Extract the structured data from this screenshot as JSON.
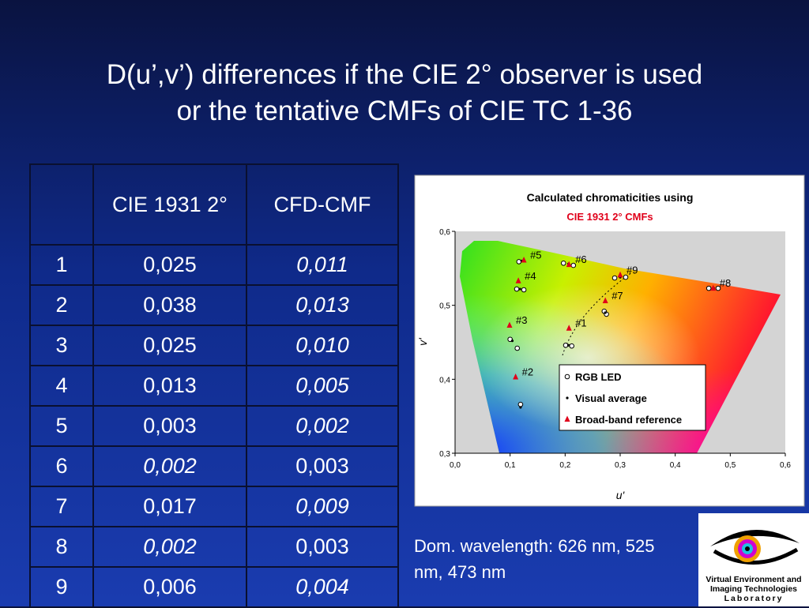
{
  "header": {
    "title_lines": [
      "D(u’,v’)  differences if the CIE 2° observer is used",
      "or the tentative CMFs of CIE TC 1-36"
    ]
  },
  "table": {
    "columns": [
      "CIE 1931 2°",
      "CFD-CMF"
    ],
    "rows": [
      [
        "1",
        "0,025",
        "0,011"
      ],
      [
        "2",
        "0,038",
        "0,013"
      ],
      [
        "3",
        "0,025",
        "0,010"
      ],
      [
        "4",
        "0,013",
        "0,005"
      ],
      [
        "5",
        "0,003",
        "0,002"
      ],
      [
        "6",
        "0,002",
        "0,003"
      ],
      [
        "7",
        "0,017",
        "0,009"
      ],
      [
        "8",
        "0,002",
        "0,003"
      ],
      [
        "9",
        "0,006",
        "0,004"
      ]
    ],
    "emphasized_column": [
      2,
      2,
      2,
      2,
      2,
      1,
      2,
      1,
      2
    ]
  },
  "chart_data": {
    "type": "scatter",
    "title": "Calculated chromaticities using",
    "subtitle": "CIE 1931 2° CMFs",
    "x_label": "u'",
    "y_label": "v'",
    "xlim": [
      0,
      0.6
    ],
    "ylim": [
      0.3,
      0.6
    ],
    "xticks": [
      {
        "value": 0,
        "label": "0,0"
      },
      {
        "value": 0.1,
        "label": "0,1"
      },
      {
        "value": 0.2,
        "label": "0,2"
      },
      {
        "value": 0.3,
        "label": "0,3"
      },
      {
        "value": 0.4,
        "label": "0,4"
      },
      {
        "value": 0.5,
        "label": "0,5"
      },
      {
        "value": 0.6,
        "label": "0,6"
      }
    ],
    "yticks": [
      {
        "value": 0.3,
        "label": "0,3"
      },
      {
        "value": 0.4,
        "label": "0,4"
      },
      {
        "value": 0.5,
        "label": "0,5"
      },
      {
        "value": 0.6,
        "label": "0,6"
      }
    ],
    "series": [
      {
        "name": "RGB LED",
        "marker": "circle",
        "color": "#000000",
        "x": [
          0.201,
          0.212,
          0.119,
          0.1,
          0.113,
          0.112,
          0.125,
          0.116,
          0.197,
          0.215,
          0.271,
          0.275,
          0.461,
          0.478,
          0.29,
          0.31
        ],
        "values": [
          0.446,
          0.445,
          0.366,
          0.454,
          0.442,
          0.522,
          0.521,
          0.559,
          0.557,
          0.554,
          0.492,
          0.488,
          0.523,
          0.523,
          0.537,
          0.538
        ]
      },
      {
        "name": "Visual average",
        "marker": "dot",
        "color": "#000000",
        "x": [
          0.206,
          0.119,
          0.104,
          0.118,
          0.121,
          0.206,
          0.273,
          0.47,
          0.3
        ],
        "values": [
          0.446,
          0.362,
          0.452,
          0.522,
          0.56,
          0.556,
          0.49,
          0.523,
          0.538
        ]
      },
      {
        "name": "Broad-band reference",
        "marker": "triangle",
        "color": "#e0001a",
        "x": [
          0.207,
          0.11,
          0.099,
          0.115,
          0.125,
          0.207,
          0.273,
          0.469,
          0.3
        ],
        "values": [
          0.469,
          0.403,
          0.473,
          0.533,
          0.561,
          0.555,
          0.506,
          0.523,
          0.541
        ],
        "point_labels": [
          "#1",
          "#2",
          "#3",
          "#4",
          "#5",
          "#6",
          "#7",
          "#8",
          "#9"
        ]
      }
    ]
  },
  "note": "Dom. wavelength: 626 nm, 525 nm, 473 nm",
  "logo": {
    "lines": [
      "Virtual Environment and",
      "Imaging Technologies",
      "Laboratory"
    ]
  }
}
